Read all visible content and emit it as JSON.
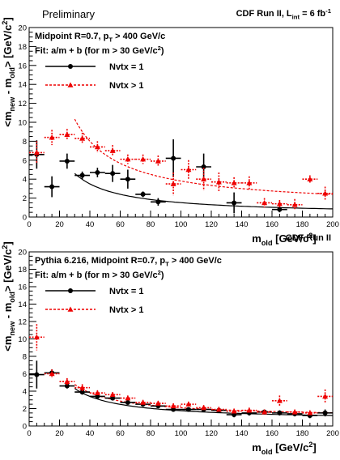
{
  "chart_data": [
    {
      "type": "scatter",
      "corner_left": "Preliminary",
      "corner_right": {
        "main": "CDF Run II, L",
        "sub": "int",
        "rest": " = 6 fb",
        "sup": "-1"
      },
      "info_line1": {
        "main": "Midpoint R=0.7, p",
        "sub": "T",
        "rest": " > 400 GeV/c"
      },
      "info_line2": {
        "main": "Fit: a/m + b (for m > 30 GeV/c",
        "sup": "2",
        "rest": ")"
      },
      "xlabel": {
        "main": "m",
        "sub": "old",
        "rest": " [GeV/c",
        "sup": "2",
        "end": "]"
      },
      "ylabel": {
        "a": "<m",
        "a_sub": "new",
        "b": " - m",
        "b_sub": "old",
        "c": "> [GeV/c",
        "c_sup": "2",
        "d": "]"
      },
      "xlim": [
        0,
        200
      ],
      "ylim": [
        0,
        20
      ],
      "x_ticks": [
        0,
        20,
        40,
        60,
        80,
        100,
        120,
        140,
        160,
        180,
        200
      ],
      "y_ticks": [
        0,
        2,
        4,
        6,
        8,
        10,
        12,
        14,
        16,
        18,
        20
      ],
      "series": [
        {
          "name": "Nvtx = 1",
          "color": "#000000",
          "marker": "circle",
          "x": [
            5,
            15,
            25,
            35,
            45,
            55,
            65,
            75,
            85,
            95,
            115,
            135,
            165
          ],
          "y": [
            6.6,
            3.2,
            5.9,
            4.4,
            4.7,
            4.6,
            4.0,
            2.4,
            1.6,
            6.2,
            5.3,
            1.5,
            0.8
          ],
          "err": [
            1.5,
            1.1,
            0.8,
            0.4,
            0.5,
            0.9,
            1.0,
            0.3,
            0.4,
            2.0,
            1.4,
            1.1,
            0.3
          ],
          "fit": {
            "a": 132,
            "b": 0.2,
            "from": 30,
            "to": 200
          }
        },
        {
          "name": "Nvtx > 1",
          "color": "#ee0000",
          "marker": "triangle",
          "x": [
            5,
            15,
            25,
            35,
            45,
            55,
            65,
            75,
            85,
            95,
            105,
            115,
            125,
            135,
            145,
            155,
            165,
            175,
            185,
            195
          ],
          "y": [
            6.8,
            8.4,
            8.7,
            8.3,
            7.4,
            7.0,
            6.1,
            6.1,
            5.9,
            3.5,
            5.0,
            4.0,
            3.7,
            3.6,
            3.6,
            1.5,
            1.4,
            1.3,
            4.0,
            2.5
          ],
          "err": [
            1.2,
            0.8,
            0.6,
            0.6,
            0.6,
            0.6,
            0.5,
            0.5,
            0.6,
            1.2,
            1.0,
            1.2,
            1.0,
            0.6,
            0.7,
            0.5,
            0.4,
            0.6,
            0.4,
            0.7
          ],
          "fit": {
            "a": 280,
            "b": 1.0,
            "from": 30,
            "to": 200
          }
        }
      ]
    },
    {
      "type": "scatter",
      "corner_left": "",
      "corner_right": {
        "main": "CDF Run II",
        "sub": "",
        "rest": "",
        "sup": ""
      },
      "info_line1": {
        "main": "Pythia 6.216, Midpoint R=0.7, p",
        "sub": "T",
        "rest": " > 400 GeV/c"
      },
      "info_line2": {
        "main": "Fit: a/m + b (for m > 30 GeV/c",
        "sup": "2",
        "rest": ")"
      },
      "xlabel": {
        "main": "m",
        "sub": "old",
        "rest": " [GeV/c",
        "sup": "2",
        "end": "]"
      },
      "ylabel": {
        "a": "<m",
        "a_sub": "new",
        "b": " - m",
        "b_sub": "old",
        "c": "> [GeV/c",
        "c_sup": "2",
        "d": "]"
      },
      "xlim": [
        0,
        200
      ],
      "ylim": [
        0,
        20
      ],
      "x_ticks": [
        0,
        20,
        40,
        60,
        80,
        100,
        120,
        140,
        160,
        180,
        200
      ],
      "y_ticks": [
        0,
        2,
        4,
        6,
        8,
        10,
        12,
        14,
        16,
        18,
        20
      ],
      "series": [
        {
          "name": "Nvtx = 1",
          "color": "#000000",
          "marker": "circle",
          "x": [
            5,
            15,
            25,
            35,
            45,
            55,
            65,
            75,
            85,
            95,
            105,
            115,
            125,
            135,
            145,
            155,
            165,
            175,
            185,
            195
          ],
          "y": [
            5.9,
            6.1,
            4.6,
            3.9,
            3.4,
            3.2,
            2.7,
            2.5,
            2.3,
            1.9,
            1.9,
            1.9,
            1.8,
            1.3,
            1.5,
            1.6,
            1.5,
            1.4,
            1.2,
            1.5
          ],
          "err": [
            1.6,
            0.4,
            0.3,
            0.3,
            0.3,
            0.2,
            0.2,
            0.2,
            0.2,
            0.2,
            0.2,
            0.3,
            0.2,
            0.3,
            0.3,
            0.3,
            0.3,
            0.3,
            0.3,
            0.4
          ],
          "fit": {
            "a": 110,
            "b": 0.65,
            "from": 30,
            "to": 200
          }
        },
        {
          "name": "Nvtx > 1",
          "color": "#ee0000",
          "marker": "triangle",
          "x": [
            5,
            15,
            25,
            35,
            45,
            55,
            65,
            75,
            85,
            95,
            105,
            115,
            125,
            135,
            145,
            155,
            165,
            175,
            185,
            195
          ],
          "y": [
            10.2,
            6.0,
            5.1,
            4.4,
            3.8,
            3.6,
            3.2,
            2.7,
            2.6,
            2.3,
            2.5,
            2.1,
            1.9,
            1.7,
            1.8,
            1.6,
            2.9,
            1.6,
            1.5,
            3.4
          ],
          "err": [
            1.5,
            0.5,
            0.4,
            0.4,
            0.3,
            0.3,
            0.3,
            0.3,
            0.3,
            0.3,
            0.3,
            0.3,
            0.3,
            0.3,
            0.3,
            0.3,
            0.6,
            0.3,
            0.3,
            0.8
          ],
          "fit": {
            "a": 115,
            "b": 0.95,
            "from": 30,
            "to": 200
          }
        }
      ]
    }
  ]
}
